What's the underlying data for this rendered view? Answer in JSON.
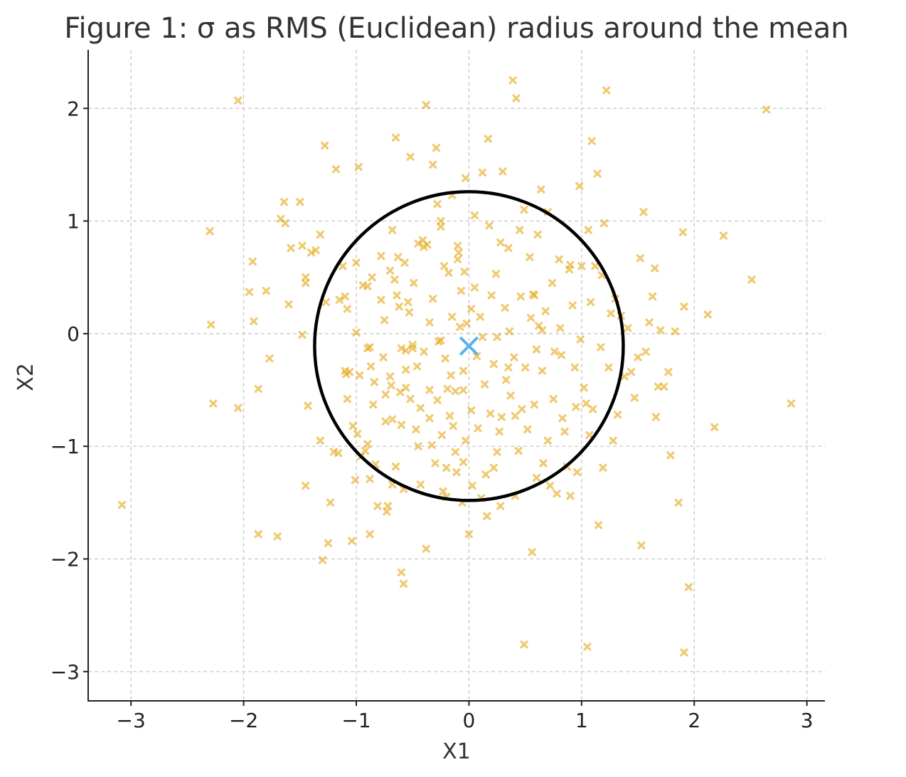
{
  "chart_data": {
    "type": "scatter",
    "title": "Figure 1: σ as RMS (Euclidean) radius around the mean",
    "xlabel": "X1",
    "ylabel": "X2",
    "xlim": [
      -3.38,
      3.16
    ],
    "ylim": [
      -3.26,
      2.52
    ],
    "xticks": [
      -3,
      -2,
      -1,
      0,
      1,
      2,
      3
    ],
    "yticks": [
      -3,
      -2,
      -1,
      0,
      1,
      2
    ],
    "xtick_labels": [
      "−3",
      "−2",
      "−1",
      "0",
      "1",
      "2",
      "3"
    ],
    "ytick_labels": [
      "−3",
      "−2",
      "−1",
      "0",
      "1",
      "2"
    ],
    "grid": true,
    "colors": {
      "points": "#E6A817",
      "mean": "#56B4E9",
      "circle": "#000000",
      "grid": "#c8c8c8",
      "text": "#333333"
    },
    "series": [
      {
        "marker": "x",
        "points": [
          [
            -3.08,
            -1.52
          ],
          [
            -2.05,
            2.07
          ],
          [
            -2.3,
            0.91
          ],
          [
            -2.29,
            0.08
          ],
          [
            -2.27,
            -0.62
          ],
          [
            -2.05,
            -0.66
          ],
          [
            -1.95,
            0.37
          ],
          [
            -1.92,
            0.64
          ],
          [
            -1.91,
            0.11
          ],
          [
            -1.87,
            -0.49
          ],
          [
            -1.87,
            -1.78
          ],
          [
            -1.8,
            0.38
          ],
          [
            -1.77,
            -0.22
          ],
          [
            -1.7,
            -1.8
          ],
          [
            -1.67,
            1.02
          ],
          [
            -1.64,
            1.17
          ],
          [
            -1.63,
            0.98
          ],
          [
            -1.6,
            0.26
          ],
          [
            -1.58,
            0.76
          ],
          [
            -1.5,
            1.17
          ],
          [
            -1.48,
            0.78
          ],
          [
            -1.48,
            -0.01
          ],
          [
            -1.45,
            0.45
          ],
          [
            -1.45,
            0.5
          ],
          [
            -1.43,
            -0.64
          ],
          [
            -1.45,
            -1.35
          ],
          [
            -1.4,
            0.72
          ],
          [
            -1.36,
            0.74
          ],
          [
            -1.32,
            0.88
          ],
          [
            -1.32,
            -0.95
          ],
          [
            -1.3,
            -2.01
          ],
          [
            -1.28,
            1.67
          ],
          [
            -1.27,
            0.28
          ],
          [
            -1.25,
            -1.86
          ],
          [
            -1.23,
            -1.5
          ],
          [
            -1.18,
            1.46
          ],
          [
            -1.2,
            -1.05
          ],
          [
            -1.16,
            -1.06
          ],
          [
            -1.12,
            0.6
          ],
          [
            -1.1,
            0.33
          ],
          [
            -1.08,
            0.22
          ],
          [
            -1.1,
            -0.33
          ],
          [
            -1.09,
            -0.36
          ],
          [
            -1.08,
            -0.58
          ],
          [
            -1.06,
            -0.34
          ],
          [
            -1.04,
            -1.84
          ],
          [
            -1.03,
            -0.82
          ],
          [
            -1.01,
            -1.3
          ],
          [
            -1.0,
            0.01
          ],
          [
            -0.97,
            -0.37
          ],
          [
            -0.99,
            -0.89
          ],
          [
            -0.98,
            1.48
          ],
          [
            -0.96,
            -1.09
          ],
          [
            -0.92,
            -1.04
          ],
          [
            -0.94,
            0.43
          ],
          [
            -0.9,
            -0.13
          ],
          [
            -0.9,
            0.42
          ],
          [
            -0.88,
            -0.12
          ],
          [
            -0.86,
            0.5
          ],
          [
            -0.85,
            -0.63
          ],
          [
            -0.87,
            -0.29
          ],
          [
            -0.88,
            -1.29
          ],
          [
            -0.88,
            -1.78
          ],
          [
            -0.83,
            -1.16
          ],
          [
            -0.81,
            -1.53
          ],
          [
            -0.78,
            0.69
          ],
          [
            -0.78,
            0.3
          ],
          [
            -0.74,
            -0.78
          ],
          [
            -0.76,
            -0.21
          ],
          [
            -0.74,
            -0.54
          ],
          [
            -0.73,
            -1.58
          ],
          [
            -0.7,
            -0.38
          ],
          [
            -0.72,
            -1.53
          ],
          [
            -0.68,
            -0.76
          ],
          [
            -0.7,
            0.56
          ],
          [
            -0.69,
            -0.46
          ],
          [
            -0.68,
            -1.34
          ],
          [
            -0.66,
            0.48
          ],
          [
            -0.65,
            1.74
          ],
          [
            -0.64,
            0.34
          ],
          [
            -0.63,
            0.68
          ],
          [
            -0.61,
            -0.52
          ],
          [
            -0.6,
            -0.13
          ],
          [
            -0.6,
            -0.81
          ],
          [
            -0.58,
            -1.38
          ],
          [
            -0.6,
            -2.12
          ],
          [
            -0.58,
            -2.22
          ],
          [
            -0.57,
            0.63
          ],
          [
            -0.56,
            -0.15
          ],
          [
            -0.56,
            -0.32
          ],
          [
            -0.56,
            -0.48
          ],
          [
            -0.54,
            0.28
          ],
          [
            -0.53,
            0.19
          ],
          [
            -0.52,
            -0.58
          ],
          [
            -0.52,
            1.57
          ],
          [
            -0.5,
            -0.1
          ],
          [
            -0.49,
            0.45
          ],
          [
            -0.47,
            -0.85
          ],
          [
            -0.46,
            -0.29
          ],
          [
            -0.43,
            -1.34
          ],
          [
            -0.43,
            -0.66
          ],
          [
            -0.41,
            0.83
          ],
          [
            -0.4,
            0.77
          ],
          [
            -0.4,
            -0.16
          ],
          [
            -0.38,
            2.03
          ],
          [
            -0.38,
            -1.91
          ],
          [
            -0.37,
            0.79
          ],
          [
            -0.35,
            -0.5
          ],
          [
            -0.35,
            -0.75
          ],
          [
            -0.33,
            -0.99
          ],
          [
            -0.32,
            0.31
          ],
          [
            -0.32,
            1.5
          ],
          [
            -0.3,
            -1.15
          ],
          [
            -0.29,
            1.65
          ],
          [
            -0.28,
            -0.59
          ],
          [
            -0.27,
            -0.07
          ],
          [
            -0.25,
            1.0
          ],
          [
            -0.25,
            0.95
          ],
          [
            -0.24,
            -0.9
          ],
          [
            -0.23,
            -1.4
          ],
          [
            -0.22,
            0.6
          ],
          [
            -0.21,
            -0.22
          ],
          [
            -0.2,
            -1.19
          ],
          [
            -0.19,
            -0.49
          ],
          [
            -0.18,
            0.54
          ],
          [
            -0.17,
            -0.73
          ],
          [
            -0.16,
            -0.37
          ],
          [
            -0.15,
            0.15
          ],
          [
            -0.14,
            -0.82
          ],
          [
            -0.12,
            -0.51
          ],
          [
            -0.12,
            -1.05
          ],
          [
            -0.11,
            -1.23
          ],
          [
            -0.1,
            0.78
          ],
          [
            -0.09,
            0.72
          ],
          [
            -0.08,
            0.06
          ],
          [
            -0.07,
            0.38
          ],
          [
            -0.06,
            -1.5
          ],
          [
            -0.05,
            -0.33
          ],
          [
            -0.05,
            -1.14
          ],
          [
            -0.04,
            0.55
          ],
          [
            -0.03,
            1.38
          ],
          [
            -0.03,
            -0.95
          ],
          [
            -0.02,
            0.09
          ],
          [
            0.0,
            -1.78
          ],
          [
            0.02,
            -0.68
          ],
          [
            0.02,
            0.22
          ],
          [
            0.03,
            -1.35
          ],
          [
            0.05,
            0.41
          ],
          [
            0.07,
            -0.2
          ],
          [
            0.08,
            -0.84
          ],
          [
            0.1,
            0.15
          ],
          [
            0.11,
            -1.46
          ],
          [
            0.12,
            1.43
          ],
          [
            0.14,
            -0.45
          ],
          [
            0.16,
            -1.62
          ],
          [
            0.17,
            1.73
          ],
          [
            0.18,
            0.96
          ],
          [
            0.19,
            -0.71
          ],
          [
            0.22,
            -0.27
          ],
          [
            0.22,
            -1.19
          ],
          [
            0.24,
            0.53
          ],
          [
            0.25,
            -0.03
          ],
          [
            0.27,
            -0.87
          ],
          [
            0.28,
            -1.53
          ],
          [
            0.29,
            -0.74
          ],
          [
            0.3,
            1.44
          ],
          [
            0.32,
            0.23
          ],
          [
            0.33,
            -0.41
          ],
          [
            0.35,
            0.76
          ],
          [
            0.36,
            0.02
          ],
          [
            0.37,
            -0.55
          ],
          [
            0.39,
            2.25
          ],
          [
            0.4,
            -0.21
          ],
          [
            0.41,
            -1.44
          ],
          [
            0.42,
            2.09
          ],
          [
            0.44,
            -1.04
          ],
          [
            0.46,
            0.33
          ],
          [
            0.47,
            -0.67
          ],
          [
            0.49,
            -2.76
          ],
          [
            0.49,
            1.1
          ],
          [
            0.5,
            -0.3
          ],
          [
            0.52,
            -0.85
          ],
          [
            0.54,
            0.68
          ],
          [
            0.55,
            0.14
          ],
          [
            0.56,
            -1.94
          ],
          [
            0.57,
            0.35
          ],
          [
            0.58,
            -0.63
          ],
          [
            0.6,
            -0.14
          ],
          [
            0.61,
            0.88
          ],
          [
            0.62,
            0.07
          ],
          [
            0.64,
            1.28
          ],
          [
            0.65,
            -0.33
          ],
          [
            0.66,
            -1.15
          ],
          [
            0.68,
            0.2
          ],
          [
            0.7,
            -0.95
          ],
          [
            0.72,
            -1.35
          ],
          [
            0.74,
            0.45
          ],
          [
            0.76,
            -0.16
          ],
          [
            0.78,
            -1.42
          ],
          [
            0.8,
            0.66
          ],
          [
            0.81,
            0.05
          ],
          [
            0.82,
            -0.19
          ],
          [
            0.83,
            -0.75
          ],
          [
            0.85,
            -0.87
          ],
          [
            0.87,
            -1.18
          ],
          [
            0.89,
            0.57
          ],
          [
            0.9,
            -1.44
          ],
          [
            0.92,
            0.25
          ],
          [
            0.94,
            -0.3
          ],
          [
            0.96,
            -1.23
          ],
          [
            0.98,
            1.31
          ],
          [
            0.99,
            -0.05
          ],
          [
            1.0,
            0.6
          ],
          [
            1.02,
            -0.48
          ],
          [
            1.04,
            -0.62
          ],
          [
            1.05,
            -2.78
          ],
          [
            1.06,
            0.92
          ],
          [
            1.07,
            -0.9
          ],
          [
            1.09,
            1.71
          ],
          [
            1.1,
            -0.67
          ],
          [
            1.12,
            0.6
          ],
          [
            1.14,
            1.42
          ],
          [
            1.15,
            -1.7
          ],
          [
            1.17,
            -0.12
          ],
          [
            1.19,
            -1.19
          ],
          [
            1.2,
            0.98
          ],
          [
            1.22,
            2.16
          ],
          [
            1.24,
            -0.3
          ],
          [
            1.26,
            0.18
          ],
          [
            1.28,
            -0.95
          ],
          [
            1.3,
            0.31
          ],
          [
            1.32,
            -0.72
          ],
          [
            1.35,
            0.16
          ],
          [
            1.38,
            -0.38
          ],
          [
            1.41,
            0.05
          ],
          [
            1.44,
            -0.34
          ],
          [
            1.47,
            -0.57
          ],
          [
            1.5,
            -0.21
          ],
          [
            1.52,
            0.67
          ],
          [
            1.53,
            -1.88
          ],
          [
            1.55,
            1.08
          ],
          [
            1.57,
            -0.16
          ],
          [
            1.6,
            0.1
          ],
          [
            1.63,
            0.33
          ],
          [
            1.65,
            0.58
          ],
          [
            1.66,
            -0.74
          ],
          [
            1.68,
            -0.47
          ],
          [
            1.7,
            0.03
          ],
          [
            1.73,
            -0.47
          ],
          [
            1.77,
            -0.34
          ],
          [
            1.79,
            -1.08
          ],
          [
            1.83,
            0.02
          ],
          [
            1.86,
            -1.5
          ],
          [
            1.9,
            0.9
          ],
          [
            1.91,
            0.24
          ],
          [
            1.91,
            -2.83
          ],
          [
            1.95,
            -2.25
          ],
          [
            2.12,
            0.17
          ],
          [
            2.18,
            -0.83
          ],
          [
            2.26,
            0.87
          ],
          [
            2.51,
            0.48
          ],
          [
            2.64,
            1.99
          ],
          [
            2.86,
            -0.62
          ],
          [
            -1.15,
            0.3
          ],
          [
            -0.45,
            0.8
          ],
          [
            0.28,
            0.81
          ],
          [
            -0.1,
            0.66
          ],
          [
            0.58,
            0.34
          ],
          [
            0.9,
            0.61
          ],
          [
            -0.62,
            0.24
          ],
          [
            0.12,
            -0.03
          ],
          [
            -0.35,
            0.1
          ],
          [
            0.41,
            -0.73
          ],
          [
            -0.84,
            -0.43
          ],
          [
            0.75,
            -0.58
          ],
          [
            -0.25,
            -0.06
          ],
          [
            0.2,
            0.34
          ],
          [
            -0.5,
            -0.13
          ],
          [
            0.65,
            0.03
          ],
          [
            -0.05,
            -0.5
          ],
          [
            0.35,
            -0.3
          ],
          [
            -0.75,
            0.12
          ],
          [
            1.08,
            0.28
          ],
          [
            -0.28,
            1.15
          ],
          [
            0.05,
            1.05
          ],
          [
            0.45,
            0.92
          ],
          [
            -0.68,
            0.92
          ],
          [
            0.7,
            1.08
          ],
          [
            -0.15,
            1.23
          ],
          [
            1.18,
            0.52
          ],
          [
            -1.0,
            0.63
          ],
          [
            0.95,
            -0.65
          ],
          [
            -0.9,
            -0.98
          ],
          [
            0.25,
            -1.05
          ],
          [
            -0.45,
            -1.0
          ],
          [
            0.6,
            -1.28
          ],
          [
            -0.2,
            -1.45
          ],
          [
            0.15,
            -1.25
          ],
          [
            -0.65,
            -1.18
          ]
        ]
      }
    ],
    "mean": [
      0.0,
      -0.11
    ],
    "circle": {
      "center": [
        0.0,
        -0.11
      ],
      "radius": 1.37
    }
  }
}
